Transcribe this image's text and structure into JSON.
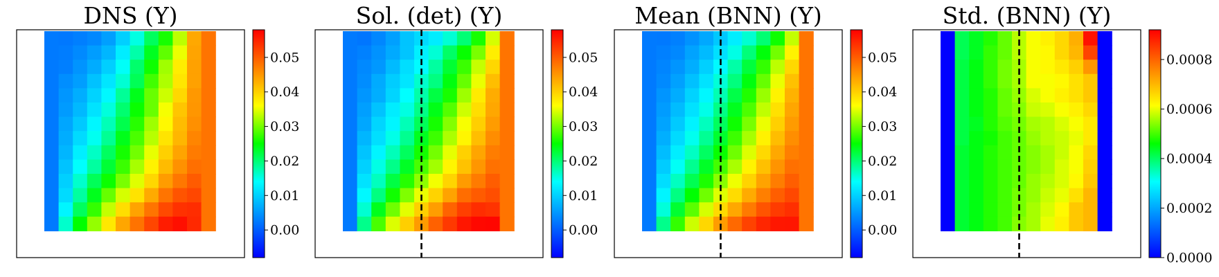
{
  "colormap": [
    "#0000ff",
    "#0080ff",
    "#00ffff",
    "#00ff00",
    "#ffff00",
    "#ff8000",
    "#ff0000"
  ],
  "chart_data": [
    {
      "type": "heatmap",
      "title": "DNS (Y)",
      "cmap_range": [
        -0.008,
        0.058
      ],
      "ticks": [
        0.0,
        0.01,
        0.02,
        0.03,
        0.04,
        0.05
      ],
      "tick_labels": [
        "0.00",
        "0.01",
        "0.02",
        "0.03",
        "0.04",
        "0.05"
      ],
      "dashed_line": false,
      "values": [
        [
          0.0025,
          0.0023,
          0.0029,
          0.0037,
          0.0057,
          0.0099,
          0.0152,
          0.021,
          0.026,
          0.0331,
          0.0435,
          0.048
        ],
        [
          0.0025,
          0.0027,
          0.0039,
          0.0055,
          0.0077,
          0.0124,
          0.0177,
          0.0236,
          0.0291,
          0.0352,
          0.0439,
          0.048
        ],
        [
          0.0025,
          0.0029,
          0.0047,
          0.0068,
          0.0098,
          0.0143,
          0.0204,
          0.0256,
          0.0319,
          0.0376,
          0.0441,
          0.048
        ],
        [
          0.0025,
          0.0042,
          0.0056,
          0.0087,
          0.0118,
          0.0159,
          0.0213,
          0.0278,
          0.0325,
          0.0382,
          0.0441,
          0.048
        ],
        [
          0.0025,
          0.0049,
          0.007,
          0.0102,
          0.0134,
          0.0185,
          0.0239,
          0.0295,
          0.0338,
          0.0394,
          0.0449,
          0.048
        ],
        [
          0.0025,
          0.0053,
          0.0079,
          0.0116,
          0.0155,
          0.0202,
          0.0254,
          0.0295,
          0.0356,
          0.041,
          0.0451,
          0.048
        ],
        [
          0.0025,
          0.0063,
          0.0093,
          0.0133,
          0.0171,
          0.0217,
          0.0267,
          0.0318,
          0.0365,
          0.0418,
          0.0456,
          0.048
        ],
        [
          0.0025,
          0.0069,
          0.0109,
          0.0146,
          0.0186,
          0.0239,
          0.0282,
          0.0329,
          0.0383,
          0.0423,
          0.0466,
          0.048
        ],
        [
          0.0025,
          0.0077,
          0.0126,
          0.0165,
          0.0209,
          0.0259,
          0.0299,
          0.035,
          0.0401,
          0.0439,
          0.0474,
          0.048
        ],
        [
          0.0025,
          0.0088,
          0.0141,
          0.0181,
          0.0227,
          0.0275,
          0.0322,
          0.037,
          0.0419,
          0.0455,
          0.0485,
          0.048
        ],
        [
          0.0025,
          0.0099,
          0.0162,
          0.0212,
          0.0255,
          0.0302,
          0.0346,
          0.0395,
          0.0446,
          0.0478,
          0.0502,
          0.048
        ],
        [
          0.0025,
          0.0109,
          0.0181,
          0.0238,
          0.0294,
          0.0342,
          0.0384,
          0.0434,
          0.048,
          0.0508,
          0.0519,
          0.048
        ],
        [
          0.0025,
          0.0132,
          0.021,
          0.0272,
          0.0334,
          0.0389,
          0.044,
          0.048,
          0.0517,
          0.0538,
          0.0541,
          0.048
        ],
        [
          0.0025,
          0.0162,
          0.025,
          0.0314,
          0.038,
          0.0437,
          0.0481,
          0.052,
          0.0556,
          0.0567,
          0.0545,
          0.048
        ]
      ]
    },
    {
      "type": "heatmap",
      "title": "Sol. (det) (Y)",
      "cmap_range": [
        -0.008,
        0.058
      ],
      "ticks": [
        0.0,
        0.01,
        0.02,
        0.03,
        0.04,
        0.05
      ],
      "tick_labels": [
        "0.00",
        "0.01",
        "0.02",
        "0.03",
        "0.04",
        "0.05"
      ],
      "dashed_line": true,
      "values": [
        [
          0.0025,
          0.0021,
          0.0036,
          0.0058,
          0.0089,
          0.0108,
          0.0124,
          0.0158,
          0.02,
          0.026,
          0.0342,
          0.048
        ],
        [
          0.0025,
          0.0031,
          0.0046,
          0.0066,
          0.009,
          0.0127,
          0.0158,
          0.0206,
          0.0253,
          0.0302,
          0.0375,
          0.048
        ],
        [
          0.0025,
          0.0038,
          0.0051,
          0.0081,
          0.0111,
          0.0137,
          0.0181,
          0.0228,
          0.0275,
          0.0335,
          0.0395,
          0.048
        ],
        [
          0.0025,
          0.0041,
          0.0067,
          0.0097,
          0.0118,
          0.0162,
          0.0195,
          0.0244,
          0.0294,
          0.0351,
          0.0416,
          0.048
        ],
        [
          0.0025,
          0.0049,
          0.007,
          0.0104,
          0.014,
          0.0177,
          0.0221,
          0.026,
          0.0318,
          0.0377,
          0.0432,
          0.048
        ],
        [
          0.0025,
          0.0057,
          0.0088,
          0.0124,
          0.0153,
          0.0192,
          0.024,
          0.0286,
          0.0339,
          0.0389,
          0.0436,
          0.048
        ],
        [
          0.0025,
          0.0064,
          0.0104,
          0.0132,
          0.0171,
          0.0212,
          0.0259,
          0.0307,
          0.0357,
          0.0402,
          0.0446,
          0.048
        ],
        [
          0.0025,
          0.0077,
          0.0112,
          0.015,
          0.0188,
          0.0236,
          0.0276,
          0.0324,
          0.0368,
          0.0416,
          0.0459,
          0.048
        ],
        [
          0.0025,
          0.0089,
          0.0131,
          0.017,
          0.021,
          0.0258,
          0.03,
          0.0349,
          0.04,
          0.0438,
          0.0473,
          0.048
        ],
        [
          0.0025,
          0.01,
          0.0151,
          0.0191,
          0.0234,
          0.0281,
          0.032,
          0.0369,
          0.0413,
          0.0451,
          0.0483,
          0.048
        ],
        [
          0.0025,
          0.0116,
          0.0168,
          0.0221,
          0.0266,
          0.0311,
          0.0355,
          0.0397,
          0.0447,
          0.0474,
          0.05,
          0.048
        ],
        [
          0.0025,
          0.0135,
          0.0195,
          0.0257,
          0.0305,
          0.0351,
          0.0398,
          0.044,
          0.0486,
          0.0502,
          0.0513,
          0.048
        ],
        [
          0.0025,
          0.016,
          0.0238,
          0.0298,
          0.0348,
          0.0402,
          0.0445,
          0.0495,
          0.0526,
          0.0541,
          0.0536,
          0.048
        ],
        [
          0.0025,
          0.019,
          0.0281,
          0.0345,
          0.0402,
          0.0447,
          0.0497,
          0.0531,
          0.0561,
          0.0573,
          0.0575,
          0.048
        ]
      ]
    },
    {
      "type": "heatmap",
      "title": "Mean (BNN) (Y)",
      "cmap_range": [
        -0.008,
        0.058
      ],
      "ticks": [
        0.0,
        0.01,
        0.02,
        0.03,
        0.04,
        0.05
      ],
      "tick_labels": [
        "0.00",
        "0.01",
        "0.02",
        "0.03",
        "0.04",
        "0.05"
      ],
      "dashed_line": true,
      "values": [
        [
          0.0025,
          0.0024,
          0.003,
          0.0046,
          0.0065,
          0.0092,
          0.0125,
          0.016,
          0.0201,
          0.0256,
          0.0334,
          0.048
        ],
        [
          0.0025,
          0.003,
          0.0037,
          0.006,
          0.0081,
          0.0113,
          0.0151,
          0.0198,
          0.0246,
          0.0299,
          0.037,
          0.048
        ],
        [
          0.0025,
          0.0034,
          0.0048,
          0.007,
          0.0099,
          0.0136,
          0.0178,
          0.0224,
          0.0272,
          0.0331,
          0.0394,
          0.048
        ],
        [
          0.0025,
          0.0039,
          0.0059,
          0.0086,
          0.0116,
          0.0157,
          0.0196,
          0.0244,
          0.0294,
          0.0351,
          0.0414,
          0.048
        ],
        [
          0.0025,
          0.0048,
          0.0069,
          0.0102,
          0.0133,
          0.0173,
          0.0219,
          0.0264,
          0.0316,
          0.037,
          0.0427,
          0.048
        ],
        [
          0.0025,
          0.0054,
          0.0082,
          0.0115,
          0.015,
          0.0192,
          0.0237,
          0.0283,
          0.0333,
          0.0386,
          0.0437,
          0.048
        ],
        [
          0.0025,
          0.0061,
          0.0094,
          0.013,
          0.0168,
          0.021,
          0.0256,
          0.0302,
          0.0352,
          0.0401,
          0.0447,
          0.048
        ],
        [
          0.0025,
          0.0071,
          0.0109,
          0.0147,
          0.0186,
          0.023,
          0.0276,
          0.0322,
          0.0371,
          0.0417,
          0.0458,
          0.048
        ],
        [
          0.0025,
          0.0083,
          0.0125,
          0.0166,
          0.0208,
          0.0253,
          0.0298,
          0.0345,
          0.0393,
          0.0435,
          0.0471,
          0.048
        ],
        [
          0.0025,
          0.0096,
          0.0144,
          0.0188,
          0.0233,
          0.0279,
          0.0323,
          0.037,
          0.0415,
          0.0453,
          0.0484,
          0.048
        ],
        [
          0.0025,
          0.0111,
          0.0167,
          0.0215,
          0.0262,
          0.0309,
          0.0353,
          0.0398,
          0.044,
          0.0473,
          0.0499,
          0.048
        ],
        [
          0.0025,
          0.0131,
          0.0194,
          0.0249,
          0.0298,
          0.0346,
          0.039,
          0.0433,
          0.0471,
          0.0499,
          0.0518,
          0.048
        ],
        [
          0.0025,
          0.0156,
          0.0229,
          0.0289,
          0.0342,
          0.0392,
          0.0436,
          0.0475,
          0.0508,
          0.0529,
          0.054,
          0.048
        ],
        [
          0.0025,
          0.019,
          0.0272,
          0.0338,
          0.0395,
          0.0446,
          0.049,
          0.0523,
          0.0547,
          0.056,
          0.0561,
          0.048
        ]
      ]
    },
    {
      "type": "heatmap",
      "title": "Std. (BNN) (Y)",
      "cmap_range": [
        0.0,
        0.00092
      ],
      "ticks": [
        0.0,
        0.0002,
        0.0004,
        0.0006,
        0.0008
      ],
      "tick_labels": [
        "0.0000",
        "0.0002",
        "0.0004",
        "0.0006",
        "0.0008"
      ],
      "dashed_line": true,
      "values": [
        [
          0.0,
          0.00041,
          0.00044,
          0.00048,
          0.00052,
          0.00057,
          0.00061,
          0.00063,
          0.00066,
          0.00071,
          0.0009,
          0.0
        ],
        [
          0.0,
          0.00041,
          0.00044,
          0.00049,
          0.00052,
          0.00057,
          0.00061,
          0.00062,
          0.00066,
          0.0007,
          0.00084,
          0.0
        ],
        [
          0.0,
          0.00042,
          0.00045,
          0.00049,
          0.00053,
          0.00056,
          0.00061,
          0.00062,
          0.00064,
          0.00067,
          0.00074,
          0.0
        ],
        [
          0.0,
          0.00042,
          0.00045,
          0.00049,
          0.00053,
          0.00056,
          0.00061,
          0.00061,
          0.00062,
          0.00065,
          0.00068,
          0.0
        ],
        [
          0.0,
          0.00042,
          0.00045,
          0.00048,
          0.00052,
          0.00055,
          0.00059,
          0.00061,
          0.00063,
          0.00065,
          0.00068,
          0.0
        ],
        [
          0.0,
          0.00042,
          0.00045,
          0.00048,
          0.00052,
          0.00054,
          0.00058,
          0.00059,
          0.00061,
          0.00063,
          0.00066,
          0.0
        ],
        [
          0.0,
          0.00042,
          0.00044,
          0.00048,
          0.00051,
          0.00053,
          0.00056,
          0.00057,
          0.00059,
          0.00061,
          0.00064,
          0.0
        ],
        [
          0.0,
          0.00042,
          0.00045,
          0.00047,
          0.0005,
          0.00052,
          0.00055,
          0.00057,
          0.00058,
          0.0006,
          0.00064,
          0.0
        ],
        [
          0.0,
          0.00043,
          0.00045,
          0.00048,
          0.0005,
          0.00052,
          0.00054,
          0.00056,
          0.00058,
          0.00061,
          0.00066,
          0.0
        ],
        [
          0.0,
          0.00043,
          0.00045,
          0.00048,
          0.0005,
          0.00052,
          0.00054,
          0.00056,
          0.00059,
          0.00061,
          0.00067,
          0.0
        ],
        [
          0.0,
          0.00043,
          0.00045,
          0.00048,
          0.0005,
          0.00052,
          0.00055,
          0.00057,
          0.00059,
          0.00062,
          0.00068,
          0.0
        ],
        [
          0.0,
          0.00043,
          0.00045,
          0.00048,
          0.0005,
          0.00053,
          0.00055,
          0.00058,
          0.0006,
          0.00065,
          0.0007,
          0.0
        ],
        [
          0.0,
          0.00043,
          0.00045,
          0.00048,
          0.0005,
          0.00053,
          0.00056,
          0.00059,
          0.00062,
          0.00068,
          0.0007,
          0.0
        ],
        [
          0.0,
          0.00043,
          0.00045,
          0.00048,
          0.0005,
          0.00054,
          0.00056,
          0.0006,
          0.00063,
          0.00068,
          0.0007,
          0.0
        ]
      ]
    }
  ]
}
